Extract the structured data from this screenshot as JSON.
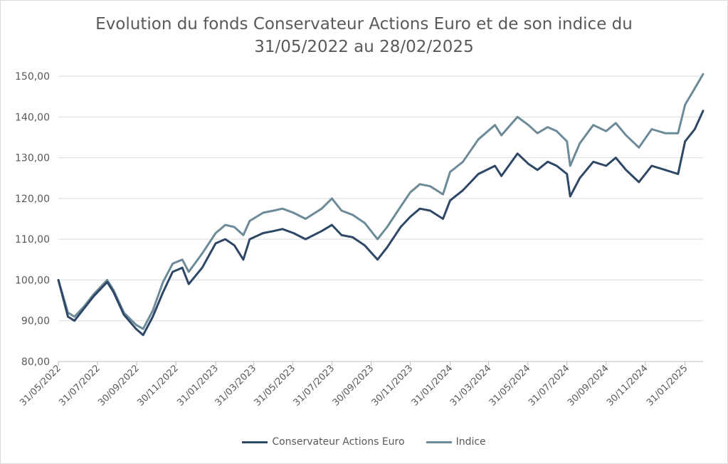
{
  "chart_data": {
    "type": "line",
    "title_lines": [
      "Evolution du fonds Conservateur Actions Euro et de son indice du",
      "31/05/2022 au 28/02/2025"
    ],
    "xlabel": "",
    "ylabel": "",
    "ylim": [
      80,
      150
    ],
    "y_ticks": [
      "80,00",
      "90,00",
      "100,00",
      "110,00",
      "120,00",
      "130,00",
      "140,00",
      "150,00"
    ],
    "x_ticks": [
      "31/05/2022",
      "31/07/2022",
      "30/09/2022",
      "30/11/2022",
      "31/01/2023",
      "31/03/2023",
      "31/05/2023",
      "31/07/2023",
      "30/09/2023",
      "30/11/2023",
      "31/01/2024",
      "31/03/2024",
      "31/05/2024",
      "31/07/2024",
      "30/09/2024",
      "30/11/2024",
      "31/01/2025"
    ],
    "grid": "horizontal",
    "legend_position": "bottom",
    "colors": {
      "fund": "#2e4766",
      "index": "#6d8a98",
      "grid": "#d9d9d9",
      "axis": "#bfbfbf",
      "text": "#595959"
    },
    "series": [
      {
        "name": "Conservateur Actions Euro",
        "x": [
          "2022-05-31",
          "2022-06-15",
          "2022-06-25",
          "2022-07-10",
          "2022-07-25",
          "2022-08-15",
          "2022-08-25",
          "2022-09-10",
          "2022-09-29",
          "2022-10-10",
          "2022-10-25",
          "2022-11-10",
          "2022-11-25",
          "2022-12-10",
          "2022-12-20",
          "2023-01-10",
          "2023-01-31",
          "2023-02-15",
          "2023-03-01",
          "2023-03-15",
          "2023-03-25",
          "2023-04-15",
          "2023-05-01",
          "2023-05-15",
          "2023-06-01",
          "2023-06-20",
          "2023-07-15",
          "2023-07-31",
          "2023-08-15",
          "2023-09-01",
          "2023-09-20",
          "2023-10-10",
          "2023-10-25",
          "2023-11-15",
          "2023-11-30",
          "2023-12-15",
          "2023-12-31",
          "2024-01-20",
          "2024-01-31",
          "2024-02-20",
          "2024-03-15",
          "2024-04-10",
          "2024-04-20",
          "2024-05-15",
          "2024-06-01",
          "2024-06-15",
          "2024-07-01",
          "2024-07-15",
          "2024-07-31",
          "2024-08-05",
          "2024-08-20",
          "2024-09-10",
          "2024-09-30",
          "2024-10-15",
          "2024-10-31",
          "2024-11-20",
          "2024-12-10",
          "2024-12-31",
          "2025-01-20",
          "2025-01-31",
          "2025-02-15",
          "2025-02-28"
        ],
        "values": [
          100.0,
          91.0,
          90.0,
          93.0,
          96.0,
          99.5,
          97.0,
          91.5,
          88.0,
          86.5,
          91.0,
          97.0,
          102.0,
          103.0,
          99.0,
          103.0,
          109.0,
          110.0,
          108.5,
          105.0,
          110.0,
          111.5,
          112.0,
          112.5,
          111.5,
          110.0,
          112.0,
          113.5,
          111.0,
          110.5,
          108.5,
          105.0,
          108.0,
          113.0,
          115.5,
          117.5,
          117.0,
          115.0,
          119.5,
          122.0,
          126.0,
          128.0,
          125.5,
          131.0,
          128.5,
          127.0,
          129.0,
          128.0,
          126.0,
          120.5,
          125.0,
          129.0,
          128.0,
          130.0,
          127.0,
          124.0,
          128.0,
          127.0,
          126.0,
          134.0,
          137.0,
          141.5
        ]
      },
      {
        "name": "Indice",
        "x": [
          "2022-05-31",
          "2022-06-15",
          "2022-06-25",
          "2022-07-10",
          "2022-07-25",
          "2022-08-15",
          "2022-08-25",
          "2022-09-10",
          "2022-09-29",
          "2022-10-10",
          "2022-10-25",
          "2022-11-10",
          "2022-11-25",
          "2022-12-10",
          "2022-12-20",
          "2023-01-10",
          "2023-01-31",
          "2023-02-15",
          "2023-03-01",
          "2023-03-15",
          "2023-03-25",
          "2023-04-15",
          "2023-05-01",
          "2023-05-15",
          "2023-06-01",
          "2023-06-20",
          "2023-07-15",
          "2023-07-31",
          "2023-08-15",
          "2023-09-01",
          "2023-09-20",
          "2023-10-10",
          "2023-10-25",
          "2023-11-15",
          "2023-11-30",
          "2023-12-15",
          "2023-12-31",
          "2024-01-20",
          "2024-01-31",
          "2024-02-20",
          "2024-03-15",
          "2024-04-10",
          "2024-04-20",
          "2024-05-15",
          "2024-06-01",
          "2024-06-15",
          "2024-07-01",
          "2024-07-15",
          "2024-07-31",
          "2024-08-05",
          "2024-08-20",
          "2024-09-10",
          "2024-09-30",
          "2024-10-15",
          "2024-10-31",
          "2024-11-20",
          "2024-12-10",
          "2024-12-31",
          "2025-01-20",
          "2025-01-31",
          "2025-02-15",
          "2025-02-28"
        ],
        "values": [
          100.0,
          92.0,
          91.0,
          93.5,
          96.5,
          100.0,
          97.5,
          92.0,
          89.0,
          88.0,
          92.5,
          99.5,
          104.0,
          105.0,
          102.0,
          106.5,
          111.5,
          113.5,
          113.0,
          111.0,
          114.5,
          116.5,
          117.0,
          117.5,
          116.5,
          115.0,
          117.5,
          120.0,
          117.0,
          116.0,
          114.0,
          110.0,
          113.0,
          118.0,
          121.5,
          123.5,
          123.0,
          121.0,
          126.5,
          129.0,
          134.5,
          138.0,
          135.5,
          140.0,
          138.0,
          136.0,
          137.5,
          136.5,
          134.0,
          128.0,
          133.5,
          138.0,
          136.5,
          138.5,
          135.5,
          132.5,
          137.0,
          136.0,
          136.0,
          143.0,
          147.0,
          150.5
        ]
      }
    ]
  }
}
